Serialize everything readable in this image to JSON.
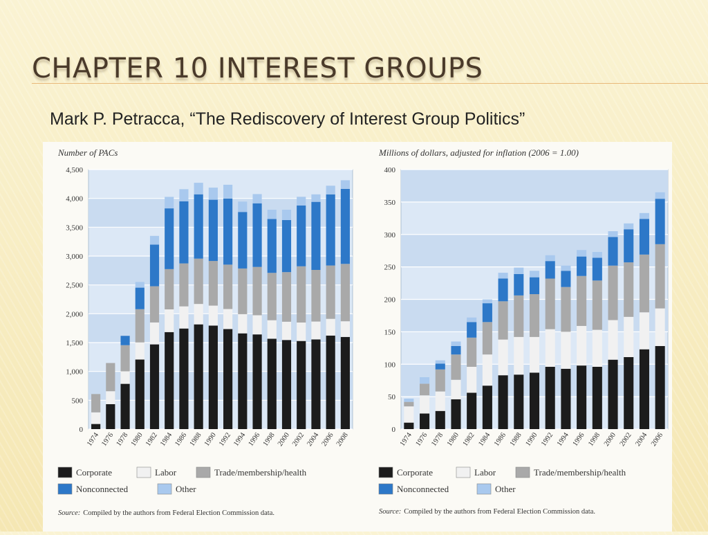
{
  "slide": {
    "title": "CHAPTER 10 INTEREST GROUPS",
    "subtitle": "Mark P. Petracca, “The Rediscovery of Interest Group Politics”"
  },
  "colors": {
    "corporate": "#1c1c1c",
    "labor": "#f1f1f1",
    "trade": "#a9a9a9",
    "nonconnected": "#2d78c8",
    "other": "#a9c9ee",
    "plot_bg": "#dce8f6",
    "band_bg": "#c9dbf0"
  },
  "chart_data": [
    {
      "type": "bar",
      "stacked": true,
      "ylabel": "Number of PACs",
      "ylim": [
        0,
        4500
      ],
      "yticks": [
        0,
        500,
        1000,
        1500,
        2000,
        2500,
        3000,
        3500,
        4000,
        4500
      ],
      "ytick_labels": [
        "0",
        "500",
        "1,000",
        "1,500",
        "2,000",
        "2,500",
        "3,000",
        "3,500",
        "4,000",
        "4,500"
      ],
      "categories": [
        "1974",
        "1976",
        "1978",
        "1980",
        "1982",
        "1984",
        "1986",
        "1988",
        "1990",
        "1992",
        "1994",
        "1996",
        "1998",
        "2000",
        "2002",
        "2004",
        "2006",
        "2008"
      ],
      "series": [
        {
          "name": "Corporate",
          "values": [
            89,
            433,
            785,
            1206,
            1469,
            1682,
            1744,
            1816,
            1795,
            1735,
            1660,
            1642,
            1567,
            1545,
            1528,
            1555,
            1622,
            1598
          ]
        },
        {
          "name": "Labor",
          "values": [
            201,
            224,
            217,
            297,
            380,
            394,
            384,
            354,
            346,
            347,
            333,
            332,
            321,
            317,
            320,
            310,
            290,
            272
          ]
        },
        {
          "name": "Trade/membership/health",
          "values": [
            318,
            489,
            453,
            576,
            628,
            698,
            745,
            786,
            774,
            770,
            792,
            838,
            821,
            860,
            975,
            895,
            925,
            995
          ]
        },
        {
          "name": "Nonconnected",
          "values": [
            0,
            0,
            162,
            374,
            723,
            1053,
            1077,
            1115,
            1062,
            1145,
            980,
            1103,
            935,
            902,
            1055,
            1180,
            1233,
            1300
          ]
        },
        {
          "name": "Other",
          "values": [
            0,
            0,
            0,
            98,
            150,
            200,
            210,
            200,
            210,
            240,
            180,
            160,
            160,
            180,
            150,
            130,
            150,
            150
          ]
        }
      ],
      "legend": [
        "Corporate",
        "Labor",
        "Trade/membership/health",
        "Nonconnected",
        "Other"
      ],
      "legend_position": "bottom",
      "source_label": "Source:",
      "source_text": "Compiled by the authors from Federal Election Commission data."
    },
    {
      "type": "bar",
      "stacked": true,
      "ylabel": "Millions of dollars, adjusted for inflation (2006 = 1.00)",
      "ylim": [
        0,
        400
      ],
      "yticks": [
        0,
        50,
        100,
        150,
        200,
        250,
        300,
        350,
        400
      ],
      "ytick_labels": [
        "0",
        "50",
        "100",
        "150",
        "200",
        "250",
        "300",
        "350",
        "400"
      ],
      "categories": [
        "1974",
        "1976",
        "1978",
        "1980",
        "1982",
        "1984",
        "1986",
        "1988",
        "1990",
        "1992",
        "1994",
        "1996",
        "1998",
        "2000",
        "2002",
        "2004",
        "2006"
      ],
      "series": [
        {
          "name": "Corporate",
          "values": [
            10,
            24,
            28,
            46,
            56,
            67,
            83,
            84,
            87,
            96,
            93,
            98,
            96,
            107,
            111,
            123,
            128
          ]
        },
        {
          "name": "Labor",
          "values": [
            25,
            28,
            30,
            30,
            40,
            48,
            55,
            58,
            55,
            58,
            57,
            61,
            57,
            61,
            62,
            57,
            58
          ]
        },
        {
          "name": "Trade/membership/health",
          "values": [
            7,
            18,
            34,
            39,
            45,
            50,
            59,
            64,
            66,
            78,
            69,
            77,
            76,
            84,
            84,
            89,
            99
          ]
        },
        {
          "name": "Nonconnected",
          "values": [
            0,
            0,
            9,
            13,
            24,
            29,
            35,
            33,
            26,
            27,
            25,
            30,
            35,
            44,
            51,
            55,
            70
          ]
        },
        {
          "name": "Other",
          "values": [
            5,
            10,
            5,
            7,
            7,
            6,
            9,
            10,
            10,
            9,
            8,
            10,
            9,
            9,
            9,
            9,
            10
          ]
        }
      ],
      "legend": [
        "Corporate",
        "Labor",
        "Trade/membership/health",
        "Nonconnected",
        "Other"
      ],
      "legend_position": "bottom",
      "source_label": "Source:",
      "source_text": "Compiled by the authors from Federal Election Commission data."
    }
  ]
}
